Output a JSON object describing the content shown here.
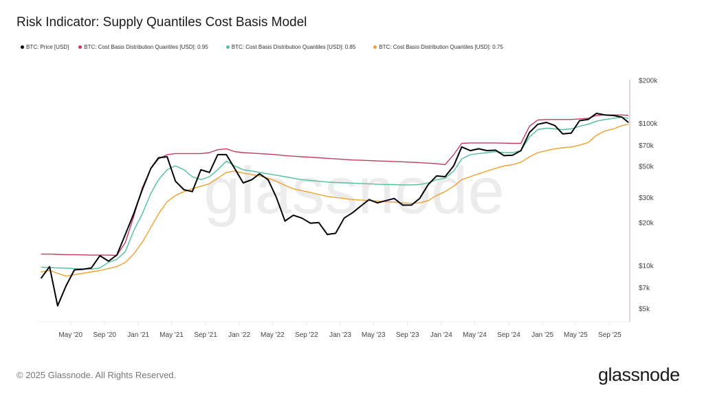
{
  "title": "Risk Indicator: Supply Quantiles Cost Basis Model",
  "footer": "© 2025 Glassnode. All Rights Reserved.",
  "logo": "glassnode",
  "watermark": "glassnode",
  "chart_data": {
    "type": "line",
    "title": "Risk Indicator: Supply Quantiles Cost Basis Model",
    "y_scale": "log",
    "ylim": [
      4000,
      220000
    ],
    "xlim": [
      "2020-01-01",
      "2025-11-10"
    ],
    "grid": false,
    "legend_position": "top-left",
    "y_axis_position": "right",
    "yticks": [
      {
        "value": 200000,
        "label": "$200k"
      },
      {
        "value": 100000,
        "label": "$100k"
      },
      {
        "value": 70000,
        "label": "$70k"
      },
      {
        "value": 50000,
        "label": "$50k"
      },
      {
        "value": 30000,
        "label": "$30k"
      },
      {
        "value": 20000,
        "label": "$20k"
      },
      {
        "value": 10000,
        "label": "$10k"
      },
      {
        "value": 7000,
        "label": "$7k"
      },
      {
        "value": 5000,
        "label": "$5k"
      }
    ],
    "xticks": [
      {
        "date": "2020-05-01",
        "label": "May '20"
      },
      {
        "date": "2020-09-01",
        "label": "Sep '20"
      },
      {
        "date": "2021-01-01",
        "label": "Jan '21"
      },
      {
        "date": "2021-05-01",
        "label": "May '21"
      },
      {
        "date": "2021-09-01",
        "label": "Sep '21"
      },
      {
        "date": "2022-01-01",
        "label": "Jan '22"
      },
      {
        "date": "2022-05-01",
        "label": "May '22"
      },
      {
        "date": "2022-09-01",
        "label": "Sep '22"
      },
      {
        "date": "2023-01-01",
        "label": "Jan '23"
      },
      {
        "date": "2023-05-01",
        "label": "May '23"
      },
      {
        "date": "2023-09-01",
        "label": "Sep '23"
      },
      {
        "date": "2024-01-01",
        "label": "Jan '24"
      },
      {
        "date": "2024-05-01",
        "label": "May '24"
      },
      {
        "date": "2024-09-01",
        "label": "Sep '24"
      },
      {
        "date": "2025-01-01",
        "label": "Jan '25"
      },
      {
        "date": "2025-05-01",
        "label": "May '25"
      },
      {
        "date": "2025-09-01",
        "label": "Sep '25"
      }
    ],
    "x": [
      "2020-01-15",
      "2020-02-15",
      "2020-03-15",
      "2020-04-15",
      "2020-05-15",
      "2020-06-15",
      "2020-07-15",
      "2020-08-15",
      "2020-09-15",
      "2020-10-15",
      "2020-11-15",
      "2020-12-15",
      "2021-01-15",
      "2021-02-15",
      "2021-03-15",
      "2021-04-15",
      "2021-05-15",
      "2021-06-15",
      "2021-07-15",
      "2021-08-15",
      "2021-09-15",
      "2021-10-15",
      "2021-11-15",
      "2021-12-15",
      "2022-01-15",
      "2022-02-15",
      "2022-03-15",
      "2022-04-15",
      "2022-05-15",
      "2022-06-15",
      "2022-07-15",
      "2022-08-15",
      "2022-09-15",
      "2022-10-15",
      "2022-11-15",
      "2022-12-15",
      "2023-01-15",
      "2023-02-15",
      "2023-03-15",
      "2023-04-15",
      "2023-05-15",
      "2023-06-15",
      "2023-07-15",
      "2023-08-15",
      "2023-09-15",
      "2023-10-15",
      "2023-11-15",
      "2023-12-15",
      "2024-01-15",
      "2024-02-15",
      "2024-03-15",
      "2024-04-15",
      "2024-05-15",
      "2024-06-15",
      "2024-07-15",
      "2024-08-15",
      "2024-09-15",
      "2024-10-15",
      "2024-11-15",
      "2024-12-15",
      "2025-01-15",
      "2025-02-15",
      "2025-03-15",
      "2025-04-15",
      "2025-05-15",
      "2025-06-15",
      "2025-07-15",
      "2025-08-15",
      "2025-09-15",
      "2025-10-15",
      "2025-11-08"
    ],
    "series": [
      {
        "name": "BTC: Price [USD]",
        "color": "#000000",
        "values": [
          8100,
          9800,
          5200,
          7200,
          9300,
          9400,
          9600,
          11700,
          10700,
          11800,
          16500,
          23000,
          34000,
          48000,
          57000,
          58000,
          39000,
          34000,
          33000,
          47000,
          45000,
          60000,
          60000,
          48000,
          38000,
          40000,
          44000,
          40000,
          30000,
          20500,
          22500,
          21500,
          19800,
          20000,
          16500,
          16800,
          21500,
          23500,
          26000,
          29000,
          27500,
          28500,
          29500,
          26500,
          26500,
          29500,
          37000,
          42500,
          42000,
          50000,
          68000,
          64000,
          66000,
          64000,
          64500,
          59000,
          59500,
          64000,
          86000,
          98000,
          101000,
          96000,
          84000,
          85000,
          104000,
          106000,
          117000,
          114000,
          113000,
          110000,
          101000
        ]
      },
      {
        "name": "BTC: Cost Basis Distribution Quantiles [USD]: 0.95",
        "color": "#c23b5e",
        "values": [
          12000,
          12000,
          11950,
          11900,
          11900,
          11850,
          11800,
          11800,
          11800,
          11750,
          14500,
          22000,
          35000,
          48000,
          56000,
          60000,
          61000,
          61000,
          61000,
          61000,
          62000,
          65000,
          66000,
          63000,
          62000,
          61500,
          61000,
          60500,
          60000,
          59000,
          58500,
          58000,
          57500,
          57000,
          56500,
          56000,
          55500,
          55000,
          54800,
          54500,
          54200,
          54000,
          53700,
          53400,
          53100,
          52700,
          52300,
          51800,
          51000,
          60000,
          72000,
          72500,
          72500,
          72500,
          72500,
          72300,
          72000,
          72000,
          95000,
          105000,
          106000,
          106000,
          106000,
          106000,
          107000,
          108000,
          113000,
          114000,
          114000,
          114000,
          113000
        ]
      },
      {
        "name": "BTC: Cost Basis Distribution Quantiles [USD]: 0.85",
        "color": "#4cbf9f",
        "values": [
          9700,
          9650,
          9600,
          9550,
          9500,
          9450,
          9400,
          9600,
          10500,
          11000,
          12500,
          17500,
          23000,
          32000,
          40000,
          47000,
          50000,
          47000,
          42000,
          40000,
          42000,
          47000,
          54000,
          50000,
          47000,
          46000,
          45000,
          44000,
          43000,
          42000,
          41000,
          40000,
          39500,
          39000,
          38500,
          38200,
          38000,
          37800,
          37600,
          37400,
          37200,
          37000,
          37000,
          36800,
          36800,
          37000,
          38000,
          40000,
          41000,
          46000,
          56000,
          60000,
          61000,
          62000,
          63000,
          62000,
          62000,
          64000,
          80000,
          90000,
          92000,
          91000,
          90000,
          91000,
          95000,
          98000,
          103000,
          106000,
          108000,
          110000,
          108000
        ]
      },
      {
        "name": "BTC: Cost Basis Distribution Quantiles [USD]: 0.75",
        "color": "#f0a02e",
        "values": [
          9000,
          9200,
          8800,
          8400,
          8600,
          8800,
          9000,
          9200,
          9500,
          9800,
          10500,
          12000,
          14500,
          18500,
          23000,
          28000,
          31000,
          33000,
          34500,
          36000,
          37500,
          41000,
          45000,
          46000,
          44500,
          43500,
          42500,
          41000,
          39000,
          36500,
          34500,
          33500,
          32500,
          31500,
          30500,
          30000,
          29500,
          29000,
          28800,
          28500,
          28300,
          28000,
          27800,
          27500,
          27300,
          27500,
          28500,
          31000,
          33000,
          36000,
          40000,
          42000,
          44000,
          46000,
          48000,
          50000,
          51000,
          53000,
          58000,
          62000,
          64000,
          66000,
          67000,
          68000,
          70000,
          73000,
          82000,
          88000,
          91000,
          96000,
          98000
        ]
      }
    ]
  }
}
